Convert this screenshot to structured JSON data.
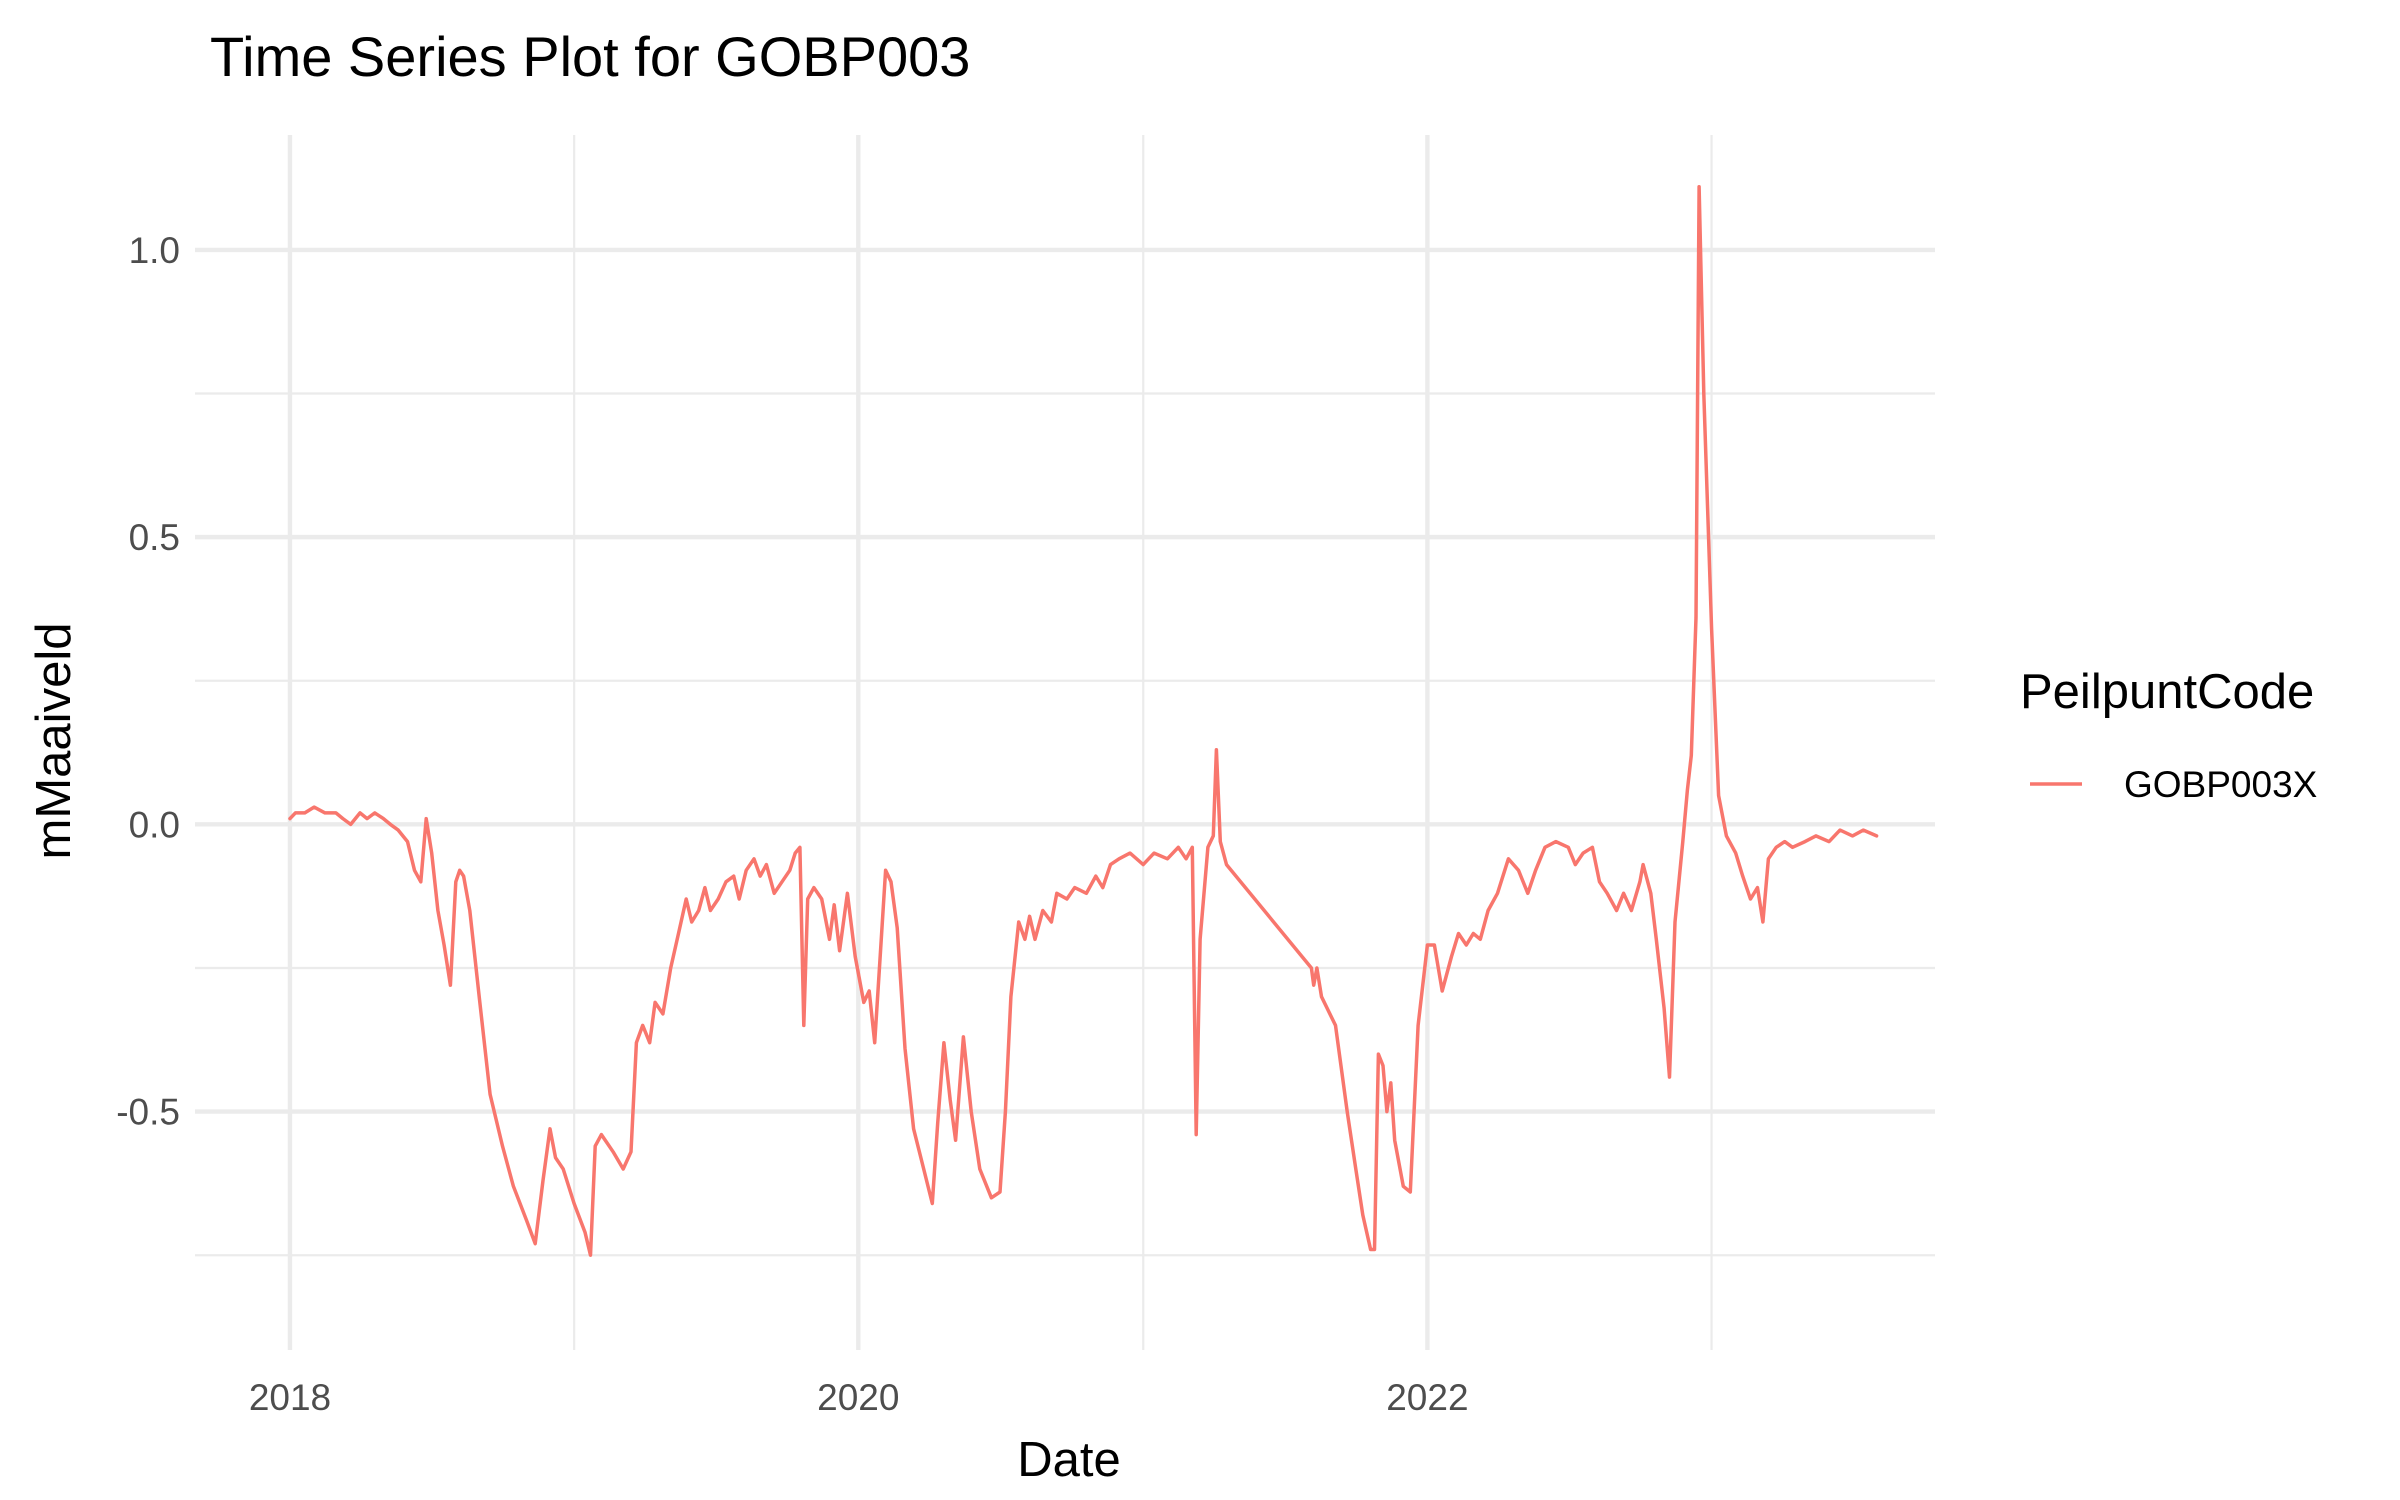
{
  "chart_data": {
    "type": "line",
    "title": "Time Series Plot for GOBP003",
    "xlabel": "Date",
    "ylabel": "mMaaiveld",
    "xlim": [
      "2017-09-01",
      "2023-10-15"
    ],
    "ylim": [
      -0.915,
      1.2
    ],
    "x_ticks": [
      {
        "date": "2018-01-01",
        "label": "2018"
      },
      {
        "date": "2020-01-01",
        "label": "2020"
      },
      {
        "date": "2022-01-01",
        "label": "2022"
      }
    ],
    "x_minor_ticks": [
      "2019-01-01",
      "2021-01-01",
      "2023-01-01"
    ],
    "y_ticks": [
      {
        "value": 1.0,
        "label": "1.0"
      },
      {
        "value": 0.5,
        "label": "0.5"
      },
      {
        "value": 0.0,
        "label": "0.0"
      },
      {
        "value": -0.5,
        "label": "-0.5"
      }
    ],
    "y_minor_ticks": [
      0.75,
      0.25,
      -0.25,
      -0.75
    ],
    "grid": true,
    "legend": {
      "title": "PeilpuntCode",
      "position": "right"
    },
    "series": [
      {
        "name": "GOBP003X",
        "color": "#F8766D",
        "points": [
          [
            "2018-01-01",
            0.01
          ],
          [
            "2018-01-08",
            0.02
          ],
          [
            "2018-01-20",
            0.02
          ],
          [
            "2018-02-01",
            0.03
          ],
          [
            "2018-02-15",
            0.02
          ],
          [
            "2018-03-01",
            0.02
          ],
          [
            "2018-03-10",
            0.01
          ],
          [
            "2018-03-20",
            0.0
          ],
          [
            "2018-04-01",
            0.02
          ],
          [
            "2018-04-10",
            0.01
          ],
          [
            "2018-04-20",
            0.02
          ],
          [
            "2018-05-01",
            0.01
          ],
          [
            "2018-05-10",
            0.0
          ],
          [
            "2018-05-20",
            -0.01
          ],
          [
            "2018-06-01",
            -0.03
          ],
          [
            "2018-06-10",
            -0.08
          ],
          [
            "2018-06-18",
            -0.1
          ],
          [
            "2018-06-25",
            0.01
          ],
          [
            "2018-07-02",
            -0.05
          ],
          [
            "2018-07-10",
            -0.15
          ],
          [
            "2018-07-18",
            -0.21
          ],
          [
            "2018-07-26",
            -0.28
          ],
          [
            "2018-08-02",
            -0.1
          ],
          [
            "2018-08-07",
            -0.08
          ],
          [
            "2018-08-12",
            -0.09
          ],
          [
            "2018-08-20",
            -0.15
          ],
          [
            "2018-09-01",
            -0.3
          ],
          [
            "2018-09-15",
            -0.47
          ],
          [
            "2018-10-01",
            -0.56
          ],
          [
            "2018-10-15",
            -0.63
          ],
          [
            "2018-11-01",
            -0.69
          ],
          [
            "2018-11-12",
            -0.73
          ],
          [
            "2018-11-22",
            -0.62
          ],
          [
            "2018-12-01",
            -0.53
          ],
          [
            "2018-12-08",
            -0.58
          ],
          [
            "2018-12-18",
            -0.6
          ],
          [
            "2019-01-01",
            -0.66
          ],
          [
            "2019-01-15",
            -0.71
          ],
          [
            "2019-01-22",
            -0.75
          ],
          [
            "2019-01-28",
            -0.56
          ],
          [
            "2019-02-05",
            -0.54
          ],
          [
            "2019-02-20",
            -0.57
          ],
          [
            "2019-03-05",
            -0.6
          ],
          [
            "2019-03-15",
            -0.57
          ],
          [
            "2019-03-22",
            -0.38
          ],
          [
            "2019-03-30",
            -0.35
          ],
          [
            "2019-04-08",
            -0.38
          ],
          [
            "2019-04-15",
            -0.31
          ],
          [
            "2019-04-25",
            -0.33
          ],
          [
            "2019-05-05",
            -0.25
          ],
          [
            "2019-05-15",
            -0.19
          ],
          [
            "2019-05-25",
            -0.13
          ],
          [
            "2019-06-01",
            -0.17
          ],
          [
            "2019-06-10",
            -0.15
          ],
          [
            "2019-06-18",
            -0.11
          ],
          [
            "2019-06-25",
            -0.15
          ],
          [
            "2019-07-05",
            -0.13
          ],
          [
            "2019-07-15",
            -0.1
          ],
          [
            "2019-07-25",
            -0.09
          ],
          [
            "2019-08-01",
            -0.13
          ],
          [
            "2019-08-10",
            -0.08
          ],
          [
            "2019-08-20",
            -0.06
          ],
          [
            "2019-08-28",
            -0.09
          ],
          [
            "2019-09-05",
            -0.07
          ],
          [
            "2019-09-15",
            -0.12
          ],
          [
            "2019-09-25",
            -0.1
          ],
          [
            "2019-10-05",
            -0.08
          ],
          [
            "2019-10-12",
            -0.05
          ],
          [
            "2019-10-18",
            -0.04
          ],
          [
            "2019-10-23",
            -0.35
          ],
          [
            "2019-10-28",
            -0.13
          ],
          [
            "2019-11-05",
            -0.11
          ],
          [
            "2019-11-15",
            -0.13
          ],
          [
            "2019-11-25",
            -0.2
          ],
          [
            "2019-12-01",
            -0.14
          ],
          [
            "2019-12-08",
            -0.22
          ],
          [
            "2019-12-18",
            -0.12
          ],
          [
            "2019-12-28",
            -0.23
          ],
          [
            "2020-01-08",
            -0.31
          ],
          [
            "2020-01-15",
            -0.29
          ],
          [
            "2020-01-22",
            -0.38
          ],
          [
            "2020-01-30",
            -0.21
          ],
          [
            "2020-02-05",
            -0.08
          ],
          [
            "2020-02-12",
            -0.1
          ],
          [
            "2020-02-20",
            -0.18
          ],
          [
            "2020-03-01",
            -0.39
          ],
          [
            "2020-03-12",
            -0.53
          ],
          [
            "2020-03-25",
            -0.6
          ],
          [
            "2020-04-05",
            -0.66
          ],
          [
            "2020-04-12",
            -0.52
          ],
          [
            "2020-04-20",
            -0.38
          ],
          [
            "2020-04-28",
            -0.48
          ],
          [
            "2020-05-05",
            -0.55
          ],
          [
            "2020-05-10",
            -0.46
          ],
          [
            "2020-05-15",
            -0.37
          ],
          [
            "2020-05-25",
            -0.5
          ],
          [
            "2020-06-05",
            -0.6
          ],
          [
            "2020-06-20",
            -0.65
          ],
          [
            "2020-07-01",
            -0.64
          ],
          [
            "2020-07-08",
            -0.5
          ],
          [
            "2020-07-15",
            -0.3
          ],
          [
            "2020-07-25",
            -0.17
          ],
          [
            "2020-08-02",
            -0.2
          ],
          [
            "2020-08-08",
            -0.16
          ],
          [
            "2020-08-15",
            -0.2
          ],
          [
            "2020-08-25",
            -0.15
          ],
          [
            "2020-09-05",
            -0.17
          ],
          [
            "2020-09-12",
            -0.12
          ],
          [
            "2020-09-25",
            -0.13
          ],
          [
            "2020-10-05",
            -0.11
          ],
          [
            "2020-10-20",
            -0.12
          ],
          [
            "2020-11-01",
            -0.09
          ],
          [
            "2020-11-10",
            -0.11
          ],
          [
            "2020-11-20",
            -0.07
          ],
          [
            "2020-12-01",
            -0.06
          ],
          [
            "2020-12-15",
            -0.05
          ],
          [
            "2021-01-01",
            -0.07
          ],
          [
            "2021-01-15",
            -0.05
          ],
          [
            "2021-02-01",
            -0.06
          ],
          [
            "2021-02-15",
            -0.04
          ],
          [
            "2021-02-25",
            -0.06
          ],
          [
            "2021-03-05",
            -0.04
          ],
          [
            "2021-03-10",
            -0.54
          ],
          [
            "2021-03-15",
            -0.2
          ],
          [
            "2021-03-25",
            -0.04
          ],
          [
            "2021-04-01",
            -0.02
          ],
          [
            "2021-04-05",
            0.13
          ],
          [
            "2021-04-10",
            -0.03
          ],
          [
            "2021-04-18",
            -0.07
          ],
          [
            "2021-08-05",
            -0.25
          ],
          [
            "2021-08-08",
            -0.28
          ],
          [
            "2021-08-12",
            -0.25
          ],
          [
            "2021-08-18",
            -0.3
          ],
          [
            "2021-09-05",
            -0.35
          ],
          [
            "2021-09-20",
            -0.5
          ],
          [
            "2021-10-01",
            -0.6
          ],
          [
            "2021-10-10",
            -0.68
          ],
          [
            "2021-10-20",
            -0.74
          ],
          [
            "2021-10-25",
            -0.74
          ],
          [
            "2021-10-30",
            -0.4
          ],
          [
            "2021-11-05",
            -0.42
          ],
          [
            "2021-11-10",
            -0.5
          ],
          [
            "2021-11-15",
            -0.45
          ],
          [
            "2021-11-20",
            -0.55
          ],
          [
            "2021-12-01",
            -0.63
          ],
          [
            "2021-12-10",
            -0.64
          ],
          [
            "2021-12-20",
            -0.35
          ],
          [
            "2022-01-01",
            -0.21
          ],
          [
            "2022-01-10",
            -0.21
          ],
          [
            "2022-01-20",
            -0.29
          ],
          [
            "2022-02-01",
            -0.23
          ],
          [
            "2022-02-10",
            -0.19
          ],
          [
            "2022-02-20",
            -0.21
          ],
          [
            "2022-03-01",
            -0.19
          ],
          [
            "2022-03-10",
            -0.2
          ],
          [
            "2022-03-20",
            -0.15
          ],
          [
            "2022-04-01",
            -0.12
          ],
          [
            "2022-04-15",
            -0.06
          ],
          [
            "2022-04-28",
            -0.08
          ],
          [
            "2022-05-10",
            -0.12
          ],
          [
            "2022-05-20",
            -0.08
          ],
          [
            "2022-06-01",
            -0.04
          ],
          [
            "2022-06-15",
            -0.03
          ],
          [
            "2022-07-01",
            -0.04
          ],
          [
            "2022-07-10",
            -0.07
          ],
          [
            "2022-07-20",
            -0.05
          ],
          [
            "2022-08-01",
            -0.04
          ],
          [
            "2022-08-10",
            -0.1
          ],
          [
            "2022-08-20",
            -0.12
          ],
          [
            "2022-09-01",
            -0.15
          ],
          [
            "2022-09-10",
            -0.12
          ],
          [
            "2022-09-20",
            -0.15
          ],
          [
            "2022-10-01",
            -0.1
          ],
          [
            "2022-10-05",
            -0.07
          ],
          [
            "2022-10-15",
            -0.12
          ],
          [
            "2022-10-22",
            -0.2
          ],
          [
            "2022-11-01",
            -0.32
          ],
          [
            "2022-11-08",
            -0.44
          ],
          [
            "2022-11-15",
            -0.17
          ],
          [
            "2022-11-25",
            -0.03
          ],
          [
            "2022-12-01",
            0.06
          ],
          [
            "2022-12-06",
            0.12
          ],
          [
            "2022-12-12",
            0.36
          ],
          [
            "2022-12-16",
            1.11
          ],
          [
            "2022-12-22",
            0.75
          ],
          [
            "2023-01-01",
            0.34
          ],
          [
            "2023-01-10",
            0.05
          ],
          [
            "2023-01-20",
            -0.02
          ],
          [
            "2023-02-01",
            -0.05
          ],
          [
            "2023-02-10",
            -0.09
          ],
          [
            "2023-02-20",
            -0.13
          ],
          [
            "2023-03-01",
            -0.11
          ],
          [
            "2023-03-08",
            -0.17
          ],
          [
            "2023-03-15",
            -0.06
          ],
          [
            "2023-03-25",
            -0.04
          ],
          [
            "2023-04-05",
            -0.03
          ],
          [
            "2023-04-15",
            -0.04
          ],
          [
            "2023-05-01",
            -0.03
          ],
          [
            "2023-05-15",
            -0.02
          ],
          [
            "2023-06-01",
            -0.03
          ],
          [
            "2023-06-15",
            -0.01
          ],
          [
            "2023-07-01",
            -0.02
          ],
          [
            "2023-07-15",
            -0.01
          ],
          [
            "2023-08-01",
            -0.02
          ]
        ]
      }
    ]
  }
}
